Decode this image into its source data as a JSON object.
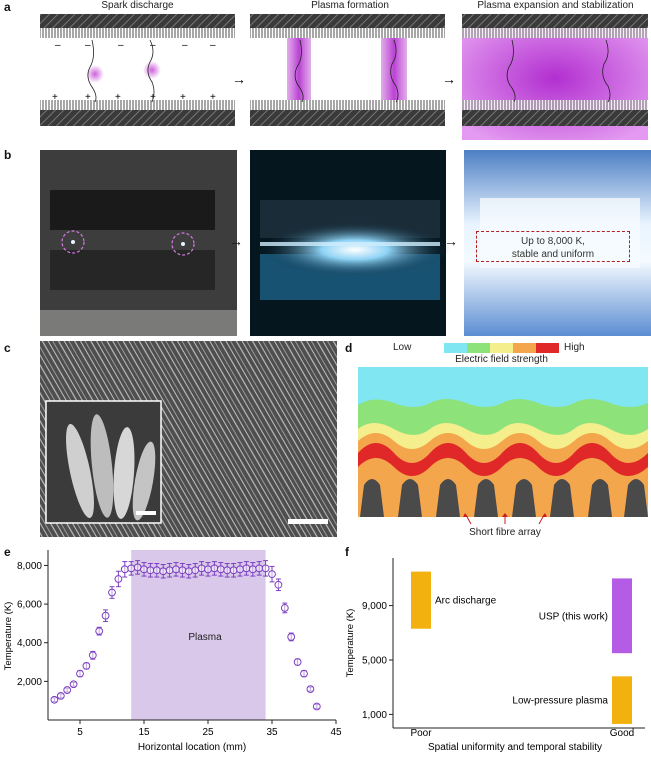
{
  "panels": {
    "a": {
      "label": "a",
      "titles": [
        "Spark discharge",
        "Plasma formation",
        "Plasma expansion and stabilization"
      ]
    },
    "b": {
      "label": "b",
      "note_line1": "Up to 8,000 K,",
      "note_line2": "stable and uniform"
    },
    "c": {
      "label": "c"
    },
    "d": {
      "label": "d",
      "legend_low": "Low",
      "legend_high": "High",
      "legend_title": "Electric field strength",
      "legend_colors": [
        "#7fe6f2",
        "#8ee27a",
        "#f4ee8c",
        "#f4a64c",
        "#e02828"
      ],
      "caption": "Short fibre array"
    },
    "e": {
      "label": "e",
      "plasma_label": "Plasma",
      "ylabel": "Temperature (K)",
      "xlabel": "Horizontal location (mm)",
      "xticks": [
        "5",
        "15",
        "25",
        "35",
        "45"
      ],
      "yticks": [
        "2,000",
        "4,000",
        "6,000",
        "8,000"
      ]
    },
    "f": {
      "label": "f",
      "ylabel": "Temperature (K)",
      "xlabel": "Spatial uniformity and temporal stability",
      "xticks": [
        "Poor",
        "Good"
      ],
      "yticks": [
        "1,000",
        "5,000",
        "9,000"
      ],
      "bar_labels": [
        "Arc discharge",
        "USP (this work)",
        "Low-pressure plasma"
      ]
    }
  },
  "chart_data": [
    {
      "panel": "e",
      "type": "scatter",
      "xlabel": "Horizontal location (mm)",
      "ylabel": "Temperature (K)",
      "xlim": [
        0,
        45
      ],
      "ylim": [
        0,
        8800
      ],
      "shaded_region": {
        "x": [
          13,
          34
        ],
        "label": "Plasma",
        "color": "#d9c8ea"
      },
      "marker_color": "#7b3fc0",
      "x": [
        1,
        2,
        3,
        4,
        5,
        6,
        7,
        8,
        9,
        10,
        11,
        12,
        13,
        14,
        15,
        16,
        17,
        18,
        19,
        20,
        21,
        22,
        23,
        24,
        25,
        26,
        27,
        28,
        29,
        30,
        31,
        32,
        33,
        34,
        35,
        36,
        37,
        38,
        39,
        40,
        41,
        42
      ],
      "y": [
        1050,
        1250,
        1550,
        1850,
        2400,
        2800,
        3350,
        4600,
        5400,
        6600,
        7300,
        7800,
        7850,
        7900,
        7800,
        7750,
        7750,
        7700,
        7750,
        7800,
        7750,
        7700,
        7750,
        7850,
        7800,
        7850,
        7800,
        7750,
        7750,
        7800,
        7850,
        7800,
        7850,
        7850,
        7550,
        7000,
        5800,
        4300,
        3000,
        2400,
        1600,
        700
      ],
      "err": [
        100,
        100,
        100,
        100,
        150,
        150,
        200,
        200,
        300,
        300,
        400,
        400,
        350,
        350,
        350,
        350,
        350,
        350,
        350,
        350,
        350,
        350,
        350,
        350,
        350,
        350,
        350,
        350,
        350,
        350,
        350,
        350,
        350,
        400,
        400,
        300,
        250,
        200,
        150,
        150,
        100,
        100
      ]
    },
    {
      "panel": "f",
      "type": "bar",
      "ylabel": "Temperature (K)",
      "xlabel": "Spatial uniformity and temporal stability",
      "y_ticks": [
        1000,
        5000,
        9000
      ],
      "ylim": [
        0,
        12500
      ],
      "series": [
        {
          "name": "Arc discharge",
          "x_position": "Poor",
          "range": [
            7300,
            11500
          ],
          "color": "#f2b10e"
        },
        {
          "name": "USP (this work)",
          "x_position": "Good",
          "range": [
            5500,
            11000
          ],
          "color": "#b55ce6"
        },
        {
          "name": "Low-pressure plasma",
          "x_position": "Good",
          "range": [
            300,
            3800
          ],
          "color": "#f2b10e"
        }
      ]
    }
  ]
}
